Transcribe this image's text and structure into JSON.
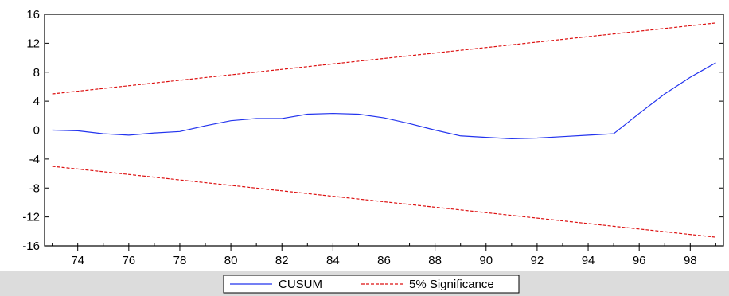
{
  "chart_data": {
    "type": "line",
    "title": "",
    "xlabel": "",
    "ylabel": "",
    "xlim": [
      72.7,
      99.3
    ],
    "ylim": [
      -16,
      16
    ],
    "yticks": [
      16,
      12,
      8,
      4,
      0,
      -4,
      -8,
      -12,
      -16
    ],
    "xticks": [
      74,
      76,
      78,
      80,
      82,
      84,
      86,
      88,
      90,
      92,
      94,
      96,
      98
    ],
    "xtick_labels": [
      "74",
      "76",
      "78",
      "80",
      "82",
      "84",
      "86",
      "88",
      "90",
      "92",
      "94",
      "96",
      "98"
    ],
    "zero_line": true,
    "grid": false,
    "legend_position": "bottom-center",
    "series": [
      {
        "name": "CUSUM",
        "color": "#2233ee",
        "style": "solid",
        "x": [
          73,
          74,
          75,
          76,
          77,
          78,
          79,
          80,
          81,
          82,
          83,
          84,
          85,
          86,
          87,
          88,
          89,
          90,
          91,
          92,
          93,
          94,
          95,
          96,
          97,
          98,
          99
        ],
        "y": [
          0.0,
          -0.1,
          -0.5,
          -0.7,
          -0.4,
          -0.2,
          0.6,
          1.3,
          1.6,
          1.6,
          2.2,
          2.3,
          2.2,
          1.7,
          0.9,
          0.0,
          -0.8,
          -1.0,
          -1.2,
          -1.1,
          -0.9,
          -0.7,
          -0.5,
          2.3,
          5.0,
          7.3,
          9.3
        ]
      },
      {
        "name": "5% Significance",
        "color": "#dd1111",
        "style": "dashed",
        "x": [
          73,
          99
        ],
        "y": [
          5.0,
          14.8
        ]
      },
      {
        "name": "",
        "color": "#dd1111",
        "style": "dashed",
        "x": [
          73,
          99
        ],
        "y": [
          -5.0,
          -14.8
        ]
      }
    ]
  },
  "legend": {
    "items": [
      {
        "label": "CUSUM",
        "color": "#2233ee",
        "style": "solid"
      },
      {
        "label": "5% Significance",
        "color": "#dd1111",
        "style": "dashed"
      }
    ]
  },
  "colors": {
    "axis": "#000000",
    "background": "#ffffff",
    "legend_band": "#dcdcdc"
  }
}
